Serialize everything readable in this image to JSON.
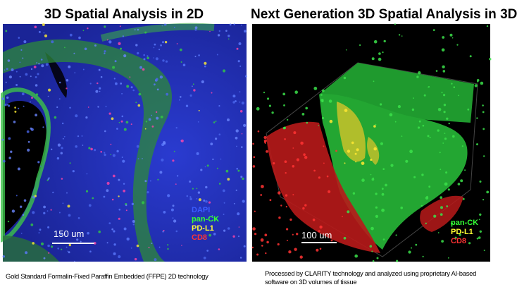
{
  "left": {
    "heading": "3D Spatial Analysis in 2D",
    "scale_label": "150 um",
    "legend": [
      {
        "label": "DAPI",
        "color": "#3a5cff"
      },
      {
        "label": "pan-CK",
        "color": "#33ff33"
      },
      {
        "label": "PD-L1",
        "color": "#ffff33"
      },
      {
        "label": "CD8",
        "color": "#ff3333"
      }
    ],
    "caption": "Gold Standard Formalin-Fixed Paraffin Embedded (FFPE) 2D technology"
  },
  "right": {
    "heading": "Next Generation 3D Spatial Analysis in 3D",
    "scale_label": "100 um",
    "legend": [
      {
        "label": "pan-CK",
        "color": "#33ff33"
      },
      {
        "label": "PD-L1",
        "color": "#ffff33"
      },
      {
        "label": "CD8",
        "color": "#ff3333"
      }
    ],
    "caption": "Processed by CLARITY technology and analyzed using proprietary AI-based software on 3D volumes of tissue"
  }
}
